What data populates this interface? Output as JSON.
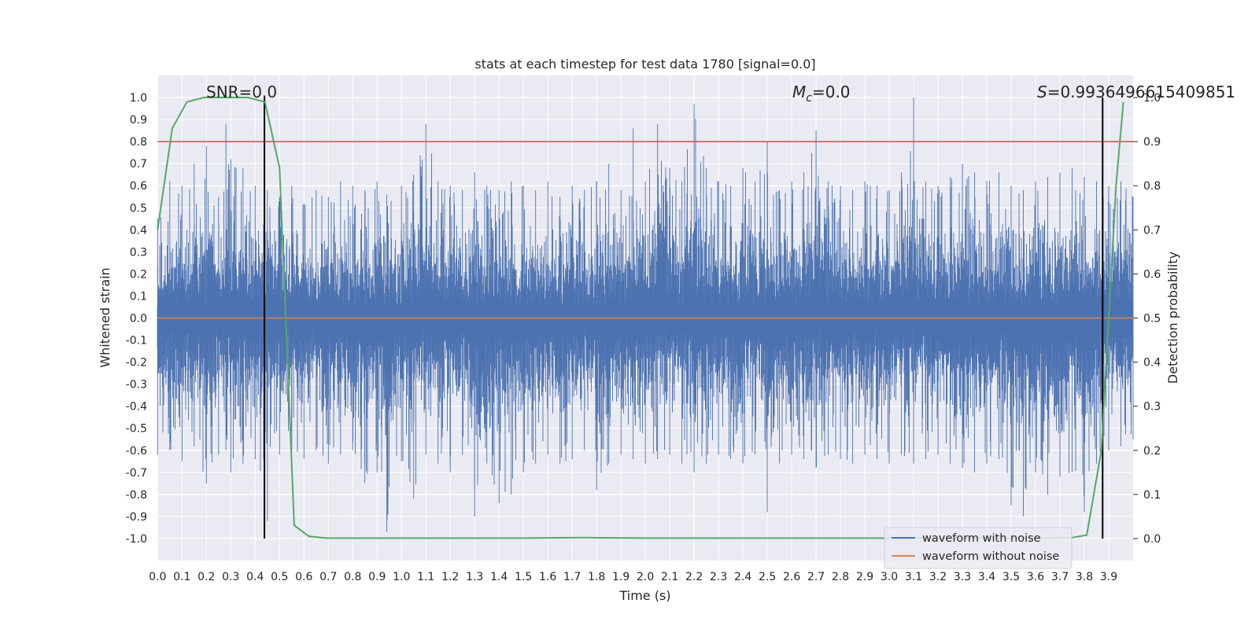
{
  "chart_data": {
    "type": "line",
    "title": "stats at each timestep for test data 1780 [signal=0.0]",
    "xlabel": "Time (s)",
    "ylabel": "Whitened strain",
    "ylabel_right": "Detection probability",
    "xlim": [
      -0.001,
      4.0
    ],
    "ylim": [
      -1.1,
      1.1
    ],
    "ylim_right": [
      -0.05,
      1.05
    ],
    "x_ticks": [
      "0.0",
      "0.1",
      "0.2",
      "0.3",
      "0.4",
      "0.5",
      "0.6",
      "0.7",
      "0.8",
      "0.9",
      "1.0",
      "1.1",
      "1.2",
      "1.3",
      "1.4",
      "1.5",
      "1.6",
      "1.7",
      "1.8",
      "1.9",
      "2.0",
      "2.1",
      "2.2",
      "2.3",
      "2.4",
      "2.5",
      "2.6",
      "2.7",
      "2.8",
      "2.9",
      "3.0",
      "3.1",
      "3.2",
      "3.3",
      "3.4",
      "3.5",
      "3.6",
      "3.7",
      "3.8",
      "3.9"
    ],
    "y_ticks": [
      "1.0",
      "0.9",
      "0.8",
      "0.7",
      "0.6",
      "0.5",
      "0.4",
      "0.3",
      "0.2",
      "0.1",
      "0.0",
      "-0.1",
      "-0.2",
      "-0.3",
      "-0.4",
      "-0.5",
      "-0.6",
      "-0.7",
      "-0.8",
      "-0.9",
      "-1.0"
    ],
    "y_ticks_right": [
      "1.0",
      "0.9",
      "0.8",
      "0.7",
      "0.6",
      "0.5",
      "0.4",
      "0.3",
      "0.2",
      "0.1",
      "0.0"
    ],
    "annotations": {
      "snr": "SNR=0.0",
      "mc_symbol": "M",
      "mc_sub": "c",
      "mc_value": "=0.0",
      "s_symbol": "S",
      "s_value": "=0.9936496615409851"
    },
    "series": [
      {
        "name": "waveform with noise",
        "color": "#4c72b0",
        "style": "dense noise trace (whitened strain), sample envelope below",
        "x": [
          0.0,
          0.05,
          0.1,
          0.15,
          0.2,
          0.25,
          0.28,
          0.3,
          0.35,
          0.4,
          0.45,
          0.5,
          0.55,
          0.6,
          0.65,
          0.7,
          0.75,
          0.8,
          0.85,
          0.9,
          0.94,
          1.0,
          1.05,
          1.1,
          1.15,
          1.2,
          1.25,
          1.3,
          1.35,
          1.4,
          1.45,
          1.5,
          1.55,
          1.6,
          1.65,
          1.7,
          1.75,
          1.8,
          1.85,
          1.9,
          1.95,
          2.0,
          2.05,
          2.1,
          2.15,
          2.2,
          2.25,
          2.3,
          2.35,
          2.4,
          2.45,
          2.5,
          2.55,
          2.6,
          2.65,
          2.7,
          2.75,
          2.8,
          2.85,
          2.9,
          2.95,
          3.0,
          3.05,
          3.1,
          3.15,
          3.2,
          3.25,
          3.3,
          3.35,
          3.4,
          3.45,
          3.5,
          3.55,
          3.6,
          3.65,
          3.7,
          3.75,
          3.8,
          3.85,
          3.9,
          3.95,
          4.0
        ],
        "upper": [
          0.45,
          0.62,
          0.6,
          0.7,
          0.78,
          0.55,
          0.88,
          0.72,
          0.68,
          0.6,
          0.58,
          0.55,
          0.6,
          0.52,
          0.58,
          0.55,
          0.62,
          0.6,
          0.58,
          0.62,
          0.56,
          0.6,
          0.65,
          0.88,
          0.62,
          0.6,
          0.58,
          0.66,
          0.6,
          0.58,
          0.62,
          0.6,
          0.58,
          0.62,
          0.55,
          0.6,
          0.58,
          0.62,
          0.7,
          0.58,
          0.86,
          0.62,
          0.88,
          0.68,
          0.62,
          0.97,
          0.68,
          0.62,
          0.6,
          0.68,
          0.62,
          0.8,
          0.58,
          0.62,
          0.66,
          0.85,
          0.62,
          0.6,
          0.58,
          0.62,
          0.6,
          0.58,
          0.66,
          1.0,
          0.62,
          0.6,
          0.64,
          0.7,
          0.66,
          0.62,
          0.66,
          0.6,
          0.58,
          0.62,
          0.64,
          0.66,
          0.68,
          0.64,
          0.62,
          0.6,
          0.62,
          0.55
        ],
        "lower": [
          -0.62,
          -0.6,
          -0.65,
          -0.58,
          -0.75,
          -0.62,
          -0.6,
          -0.7,
          -0.66,
          -0.64,
          -0.92,
          -0.62,
          -0.6,
          -0.64,
          -0.6,
          -0.66,
          -0.62,
          -0.6,
          -0.75,
          -0.7,
          -0.97,
          -0.65,
          -0.82,
          -0.62,
          -0.66,
          -0.7,
          -0.62,
          -0.9,
          -0.66,
          -0.84,
          -0.8,
          -0.7,
          -0.66,
          -0.62,
          -0.66,
          -0.64,
          -0.6,
          -0.78,
          -0.66,
          -0.62,
          -0.64,
          -0.66,
          -0.64,
          -0.62,
          -0.66,
          -0.7,
          -0.66,
          -0.62,
          -0.64,
          -0.66,
          -0.62,
          -0.88,
          -0.66,
          -0.62,
          -0.64,
          -0.68,
          -0.62,
          -0.64,
          -0.66,
          -0.62,
          -0.64,
          -0.66,
          -0.62,
          -0.66,
          -0.64,
          -0.62,
          -0.66,
          -0.68,
          -0.7,
          -0.66,
          -0.64,
          -0.85,
          -0.9,
          -0.7,
          -0.8,
          -0.72,
          -0.7,
          -0.88,
          -0.66,
          -0.6,
          -0.58,
          -0.55
        ]
      },
      {
        "name": "waveform without noise",
        "color": "#dd8452",
        "x": [
          0.0,
          4.0
        ],
        "values": [
          0.0,
          0.0
        ]
      },
      {
        "name": "detection probability",
        "color": "#55a868",
        "axis": "right",
        "x": [
          0.0,
          0.06,
          0.12,
          0.19,
          0.25,
          0.31,
          0.37,
          0.44,
          0.5,
          0.56,
          0.62,
          0.69,
          0.75,
          1.0,
          1.25,
          1.5,
          1.75,
          2.0,
          2.25,
          2.5,
          2.75,
          3.0,
          3.25,
          3.5,
          3.75,
          3.81,
          3.87,
          3.93,
          3.96
        ],
        "values": [
          0.7,
          0.93,
          0.99,
          1.0,
          1.0,
          1.0,
          1.0,
          0.99,
          0.84,
          0.03,
          0.005,
          0.001,
          0.001,
          0.001,
          0.001,
          0.001,
          0.002,
          0.001,
          0.001,
          0.001,
          0.001,
          0.001,
          0.001,
          0.001,
          0.002,
          0.008,
          0.2,
          0.8,
          0.99
        ]
      }
    ],
    "reference_lines": [
      {
        "kind": "horizontal",
        "axis": "right",
        "value": 0.9,
        "color": "#c44e52"
      },
      {
        "kind": "vertical",
        "value": 0.438,
        "color": "#000000"
      },
      {
        "kind": "vertical",
        "value": 3.875,
        "color": "#000000"
      }
    ],
    "legend": {
      "position": "lower-right",
      "items": [
        "waveform with noise",
        "waveform without noise"
      ]
    },
    "grid": true
  }
}
